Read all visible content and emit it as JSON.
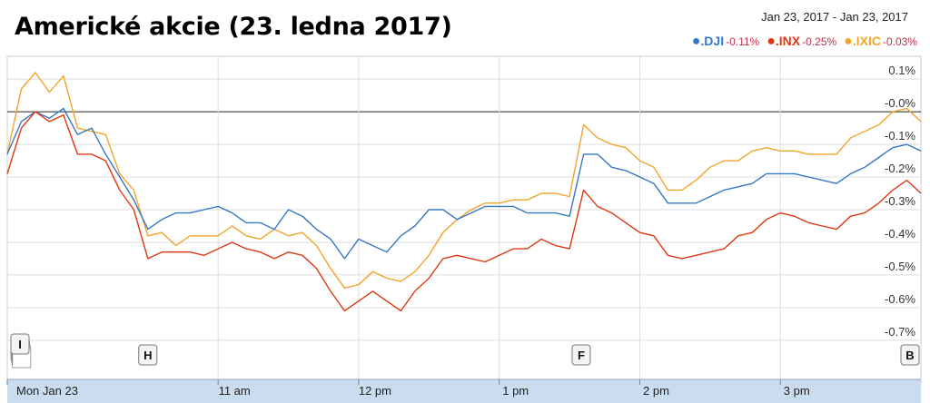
{
  "title": "Americké akcie (23. ledna 2017)",
  "date_range": "Jan 23, 2017  -  Jan 23, 2017",
  "colors": {
    "dji": "#3778c2",
    "inx": "#dc3912",
    "ixic": "#f2a52a",
    "change_text": "#c0304a",
    "grid": "#dddddd",
    "axis_band": "#c9dcf0"
  },
  "legend": [
    {
      "symbol": ".DJI",
      "change": "-0.11%",
      "color": "#3778c2"
    },
    {
      "symbol": ".INX",
      "change": "-0.25%",
      "color": "#dc3912"
    },
    {
      "symbol": ".IXIC",
      "change": "-0.03%",
      "color": "#f2a52a"
    }
  ],
  "markers": [
    {
      "label": "I",
      "x": "09:30"
    },
    {
      "label": "H",
      "x": "10:30"
    },
    {
      "label": "F",
      "x": "13:35"
    },
    {
      "label": "B",
      "x": "15:58"
    }
  ],
  "chart_data": {
    "type": "line",
    "title": "Americké akcie (23. ledna 2017)",
    "x_tick_labels": [
      "Mon Jan 23",
      "11 am",
      "12 pm",
      "1 pm",
      "2 pm",
      "3 pm"
    ],
    "x_ticks": [
      "09:30",
      "11:00",
      "12:00",
      "13:00",
      "14:00",
      "15:00"
    ],
    "xlim": [
      "09:30",
      "16:00"
    ],
    "y_tick_labels": [
      "0.1%",
      "-0.0%",
      "-0.1%",
      "-0.2%",
      "-0.3%",
      "-0.4%",
      "-0.5%",
      "-0.6%",
      "-0.7%"
    ],
    "y_ticks": [
      0.1,
      0.0,
      -0.1,
      -0.2,
      -0.3,
      -0.4,
      -0.5,
      -0.6,
      -0.7
    ],
    "ylim": [
      -0.77,
      0.17
    ],
    "grid": true,
    "series": [
      {
        "name": ".DJI",
        "change": "-0.11%",
        "points": [
          [
            "09:30",
            -0.13
          ],
          [
            "09:36",
            -0.03
          ],
          [
            "09:42",
            0.0
          ],
          [
            "09:48",
            -0.02
          ],
          [
            "09:54",
            0.01
          ],
          [
            "10:00",
            -0.07
          ],
          [
            "10:06",
            -0.05
          ],
          [
            "10:12",
            -0.13
          ],
          [
            "10:18",
            -0.2
          ],
          [
            "10:24",
            -0.27
          ],
          [
            "10:30",
            -0.36
          ],
          [
            "10:36",
            -0.33
          ],
          [
            "10:42",
            -0.31
          ],
          [
            "10:48",
            -0.31
          ],
          [
            "10:54",
            -0.3
          ],
          [
            "11:00",
            -0.29
          ],
          [
            "11:06",
            -0.31
          ],
          [
            "11:12",
            -0.34
          ],
          [
            "11:18",
            -0.34
          ],
          [
            "11:24",
            -0.36
          ],
          [
            "11:30",
            -0.3
          ],
          [
            "11:36",
            -0.32
          ],
          [
            "11:42",
            -0.36
          ],
          [
            "11:48",
            -0.39
          ],
          [
            "11:54",
            -0.45
          ],
          [
            "12:00",
            -0.39
          ],
          [
            "12:06",
            -0.41
          ],
          [
            "12:12",
            -0.43
          ],
          [
            "12:18",
            -0.38
          ],
          [
            "12:24",
            -0.35
          ],
          [
            "12:30",
            -0.3
          ],
          [
            "12:36",
            -0.3
          ],
          [
            "12:42",
            -0.33
          ],
          [
            "12:48",
            -0.31
          ],
          [
            "12:54",
            -0.29
          ],
          [
            "13:00",
            -0.29
          ],
          [
            "13:06",
            -0.29
          ],
          [
            "13:12",
            -0.31
          ],
          [
            "13:18",
            -0.31
          ],
          [
            "13:24",
            -0.31
          ],
          [
            "13:30",
            -0.32
          ],
          [
            "13:36",
            -0.13
          ],
          [
            "13:42",
            -0.13
          ],
          [
            "13:48",
            -0.17
          ],
          [
            "13:54",
            -0.18
          ],
          [
            "14:00",
            -0.2
          ],
          [
            "14:06",
            -0.22
          ],
          [
            "14:12",
            -0.28
          ],
          [
            "14:18",
            -0.28
          ],
          [
            "14:24",
            -0.28
          ],
          [
            "14:30",
            -0.26
          ],
          [
            "14:36",
            -0.24
          ],
          [
            "14:42",
            -0.23
          ],
          [
            "14:48",
            -0.22
          ],
          [
            "14:54",
            -0.19
          ],
          [
            "15:00",
            -0.19
          ],
          [
            "15:06",
            -0.19
          ],
          [
            "15:12",
            -0.2
          ],
          [
            "15:18",
            -0.21
          ],
          [
            "15:24",
            -0.22
          ],
          [
            "15:30",
            -0.19
          ],
          [
            "15:36",
            -0.17
          ],
          [
            "15:42",
            -0.14
          ],
          [
            "15:48",
            -0.11
          ],
          [
            "15:54",
            -0.1
          ],
          [
            "16:00",
            -0.12
          ]
        ]
      },
      {
        "name": ".INX",
        "change": "-0.25%",
        "points": [
          [
            "09:30",
            -0.19
          ],
          [
            "09:36",
            -0.05
          ],
          [
            "09:42",
            0.0
          ],
          [
            "09:48",
            -0.03
          ],
          [
            "09:54",
            -0.01
          ],
          [
            "10:00",
            -0.13
          ],
          [
            "10:06",
            -0.13
          ],
          [
            "10:12",
            -0.15
          ],
          [
            "10:18",
            -0.24
          ],
          [
            "10:24",
            -0.3
          ],
          [
            "10:30",
            -0.45
          ],
          [
            "10:36",
            -0.43
          ],
          [
            "10:42",
            -0.43
          ],
          [
            "10:48",
            -0.43
          ],
          [
            "10:54",
            -0.44
          ],
          [
            "11:00",
            -0.42
          ],
          [
            "11:06",
            -0.4
          ],
          [
            "11:12",
            -0.42
          ],
          [
            "11:18",
            -0.43
          ],
          [
            "11:24",
            -0.45
          ],
          [
            "11:30",
            -0.43
          ],
          [
            "11:36",
            -0.44
          ],
          [
            "11:42",
            -0.48
          ],
          [
            "11:48",
            -0.55
          ],
          [
            "11:54",
            -0.61
          ],
          [
            "12:00",
            -0.58
          ],
          [
            "12:06",
            -0.55
          ],
          [
            "12:12",
            -0.58
          ],
          [
            "12:18",
            -0.61
          ],
          [
            "12:24",
            -0.55
          ],
          [
            "12:30",
            -0.51
          ],
          [
            "12:36",
            -0.45
          ],
          [
            "12:42",
            -0.44
          ],
          [
            "12:48",
            -0.45
          ],
          [
            "12:54",
            -0.46
          ],
          [
            "13:00",
            -0.44
          ],
          [
            "13:06",
            -0.42
          ],
          [
            "13:12",
            -0.42
          ],
          [
            "13:18",
            -0.39
          ],
          [
            "13:24",
            -0.41
          ],
          [
            "13:30",
            -0.42
          ],
          [
            "13:36",
            -0.24
          ],
          [
            "13:42",
            -0.29
          ],
          [
            "13:48",
            -0.31
          ],
          [
            "13:54",
            -0.34
          ],
          [
            "14:00",
            -0.37
          ],
          [
            "14:06",
            -0.38
          ],
          [
            "14:12",
            -0.44
          ],
          [
            "14:18",
            -0.45
          ],
          [
            "14:24",
            -0.44
          ],
          [
            "14:30",
            -0.43
          ],
          [
            "14:36",
            -0.42
          ],
          [
            "14:42",
            -0.38
          ],
          [
            "14:48",
            -0.37
          ],
          [
            "14:54",
            -0.33
          ],
          [
            "15:00",
            -0.31
          ],
          [
            "15:06",
            -0.32
          ],
          [
            "15:12",
            -0.34
          ],
          [
            "15:18",
            -0.35
          ],
          [
            "15:24",
            -0.36
          ],
          [
            "15:30",
            -0.32
          ],
          [
            "15:36",
            -0.31
          ],
          [
            "15:42",
            -0.28
          ],
          [
            "15:48",
            -0.24
          ],
          [
            "15:54",
            -0.21
          ],
          [
            "16:00",
            -0.25
          ]
        ]
      },
      {
        "name": ".IXIC",
        "change": "-0.03%",
        "points": [
          [
            "09:30",
            -0.13
          ],
          [
            "09:36",
            0.07
          ],
          [
            "09:42",
            0.12
          ],
          [
            "09:48",
            0.06
          ],
          [
            "09:54",
            0.11
          ],
          [
            "10:00",
            -0.05
          ],
          [
            "10:06",
            -0.06
          ],
          [
            "10:12",
            -0.07
          ],
          [
            "10:18",
            -0.19
          ],
          [
            "10:24",
            -0.24
          ],
          [
            "10:30",
            -0.38
          ],
          [
            "10:36",
            -0.37
          ],
          [
            "10:42",
            -0.41
          ],
          [
            "10:48",
            -0.38
          ],
          [
            "10:54",
            -0.38
          ],
          [
            "11:00",
            -0.38
          ],
          [
            "11:06",
            -0.35
          ],
          [
            "11:12",
            -0.38
          ],
          [
            "11:18",
            -0.39
          ],
          [
            "11:24",
            -0.36
          ],
          [
            "11:30",
            -0.38
          ],
          [
            "11:36",
            -0.37
          ],
          [
            "11:42",
            -0.41
          ],
          [
            "11:48",
            -0.48
          ],
          [
            "11:54",
            -0.54
          ],
          [
            "12:00",
            -0.53
          ],
          [
            "12:06",
            -0.49
          ],
          [
            "12:12",
            -0.51
          ],
          [
            "12:18",
            -0.52
          ],
          [
            "12:24",
            -0.49
          ],
          [
            "12:30",
            -0.44
          ],
          [
            "12:36",
            -0.37
          ],
          [
            "12:42",
            -0.33
          ],
          [
            "12:48",
            -0.3
          ],
          [
            "12:54",
            -0.28
          ],
          [
            "13:00",
            -0.28
          ],
          [
            "13:06",
            -0.27
          ],
          [
            "13:12",
            -0.27
          ],
          [
            "13:18",
            -0.25
          ],
          [
            "13:24",
            -0.25
          ],
          [
            "13:30",
            -0.26
          ],
          [
            "13:36",
            -0.04
          ],
          [
            "13:42",
            -0.08
          ],
          [
            "13:48",
            -0.1
          ],
          [
            "13:54",
            -0.11
          ],
          [
            "14:00",
            -0.15
          ],
          [
            "14:06",
            -0.17
          ],
          [
            "14:12",
            -0.24
          ],
          [
            "14:18",
            -0.24
          ],
          [
            "14:24",
            -0.21
          ],
          [
            "14:30",
            -0.17
          ],
          [
            "14:36",
            -0.15
          ],
          [
            "14:42",
            -0.15
          ],
          [
            "14:48",
            -0.12
          ],
          [
            "14:54",
            -0.11
          ],
          [
            "15:00",
            -0.12
          ],
          [
            "15:06",
            -0.12
          ],
          [
            "15:12",
            -0.13
          ],
          [
            "15:18",
            -0.13
          ],
          [
            "15:24",
            -0.13
          ],
          [
            "15:30",
            -0.08
          ],
          [
            "15:36",
            -0.06
          ],
          [
            "15:42",
            -0.04
          ],
          [
            "15:48",
            -0.0
          ],
          [
            "15:54",
            0.01
          ],
          [
            "16:00",
            -0.03
          ]
        ]
      }
    ]
  }
}
